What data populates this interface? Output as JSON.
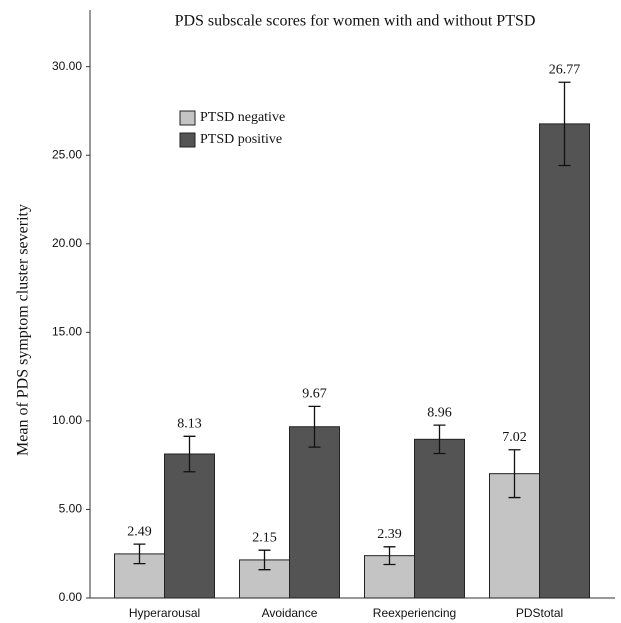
{
  "chart_data": {
    "type": "bar",
    "title": "PDS subscale scores for women with and without PTSD",
    "y_label": "Mean of PDS symptom cluster severity",
    "categories": [
      "Hyperarousal",
      "Avoidance",
      "Reexperiencing",
      "PDStotal"
    ],
    "series": [
      {
        "name": "PTSD negative",
        "color": "#c4c4c4",
        "values": [
          2.49,
          2.15,
          2.39,
          7.02
        ],
        "errors": [
          0.55,
          0.55,
          0.5,
          1.35
        ]
      },
      {
        "name": "PTSD positive",
        "color": "#545454",
        "values": [
          8.13,
          9.67,
          8.96,
          26.77
        ],
        "errors": [
          1.0,
          1.15,
          0.8,
          2.35
        ]
      }
    ],
    "ylim": [
      0,
      33.2
    ],
    "yticks": [
      {
        "value": 0,
        "label": "0.00"
      },
      {
        "value": 5,
        "label": "5.00"
      },
      {
        "value": 10,
        "label": "10.00"
      },
      {
        "value": 15,
        "label": "15.00"
      },
      {
        "value": 20,
        "label": "20.00"
      },
      {
        "value": 25,
        "label": "25.00"
      },
      {
        "value": 30,
        "label": "30.00"
      }
    ],
    "grid": false,
    "legend": "upper left"
  }
}
